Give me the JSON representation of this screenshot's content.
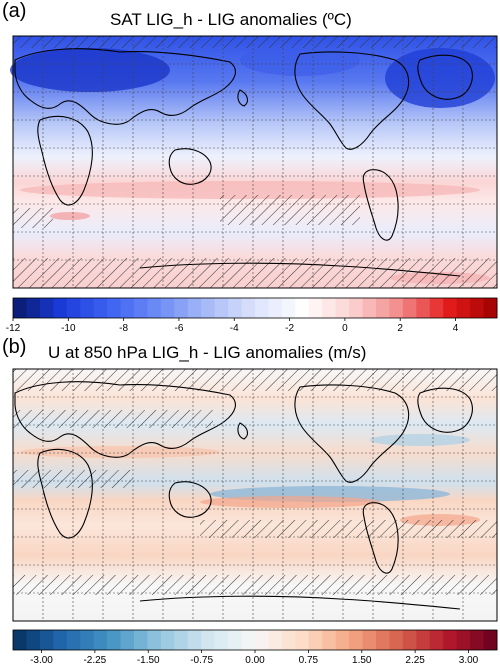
{
  "panels": [
    {
      "label": "(a)",
      "title": "SAT LIG_h - LIG  anomalies (ºC)",
      "colorbar": {
        "ticks": [
          "-12",
          "-10",
          "-8",
          "-6",
          "-4",
          "-2",
          "0",
          "2",
          "4"
        ],
        "tick_values": [
          -12,
          -10,
          -8,
          -6,
          -4,
          -2,
          0,
          2,
          4
        ],
        "range": [
          -12,
          5.5
        ],
        "colors": [
          "#08196b",
          "#1b3bd8",
          "#3d63f2",
          "#6d8cf5",
          "#a8baf7",
          "#dce3fb",
          "#ffffff",
          "#fbd2d2",
          "#f28a8a",
          "#e31b1b",
          "#a00000"
        ]
      }
    },
    {
      "label": "(b)",
      "title": "U at 850 hPa LIG_h - LIG  anomalies (m/s)",
      "colorbar": {
        "ticks": [
          "-3.00",
          "-2.25",
          "-1.50",
          "-0.75",
          "0.00",
          "0.75",
          "1.50",
          "2.25",
          "3.00"
        ],
        "tick_values": [
          -3,
          -2.25,
          -1.5,
          -0.75,
          0,
          0.75,
          1.5,
          2.25,
          3
        ],
        "range": [
          -3.4,
          3.4
        ],
        "colors": [
          "#053061",
          "#2166ac",
          "#4393c3",
          "#92c5de",
          "#d1e5f0",
          "#f7f7f7",
          "#fddbc7",
          "#f4a582",
          "#d6604d",
          "#b2182b",
          "#67001f"
        ]
      }
    }
  ]
}
